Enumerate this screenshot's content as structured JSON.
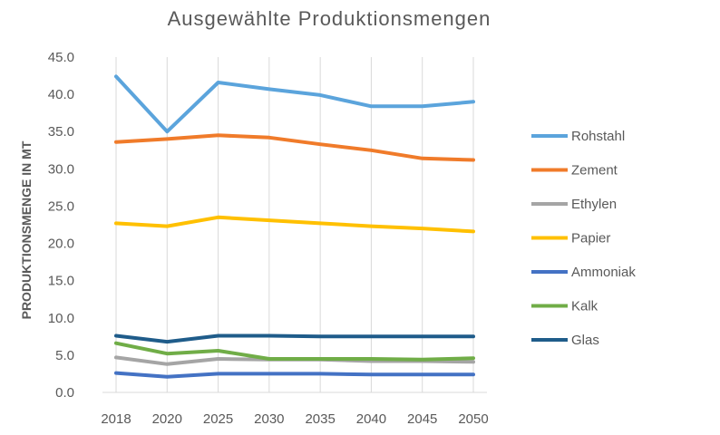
{
  "chart_data": {
    "type": "line",
    "title": "Ausgewählte Produktionsmengen",
    "xlabel": "",
    "ylabel": "PRODUKTIONSMENGE IN MT",
    "categories": [
      "2018",
      "2020",
      "2025",
      "2030",
      "2035",
      "2040",
      "2045",
      "2050"
    ],
    "ylim": [
      0,
      45
    ],
    "yticks": [
      "0.0",
      "5.0",
      "10.0",
      "15.0",
      "20.0",
      "25.0",
      "30.0",
      "35.0",
      "40.0",
      "45.0"
    ],
    "grid": "vertical",
    "legend_position": "right",
    "series": [
      {
        "name": "Rohstahl",
        "color": "#5BA4DC",
        "values": [
          42.4,
          35.0,
          41.6,
          40.7,
          39.9,
          38.4,
          38.4,
          39.0
        ]
      },
      {
        "name": "Zement",
        "color": "#F07B2A",
        "values": [
          33.6,
          34.0,
          34.5,
          34.2,
          33.3,
          32.5,
          31.4,
          31.2
        ]
      },
      {
        "name": "Ethylen",
        "color": "#A5A5A5",
        "values": [
          4.7,
          3.8,
          4.5,
          4.4,
          4.4,
          4.2,
          4.2,
          4.1
        ]
      },
      {
        "name": "Papier",
        "color": "#FFC000",
        "values": [
          22.7,
          22.3,
          23.5,
          23.1,
          22.7,
          22.3,
          22.0,
          21.6
        ]
      },
      {
        "name": "Ammoniak",
        "color": "#4472C4",
        "values": [
          2.6,
          2.1,
          2.5,
          2.5,
          2.5,
          2.4,
          2.4,
          2.4
        ]
      },
      {
        "name": "Kalk",
        "color": "#70AD47",
        "values": [
          6.6,
          5.2,
          5.6,
          4.5,
          4.5,
          4.5,
          4.4,
          4.6
        ]
      },
      {
        "name": "Glas",
        "color": "#1F5C8A",
        "values": [
          7.6,
          6.8,
          7.6,
          7.6,
          7.5,
          7.5,
          7.5,
          7.5
        ]
      }
    ]
  }
}
